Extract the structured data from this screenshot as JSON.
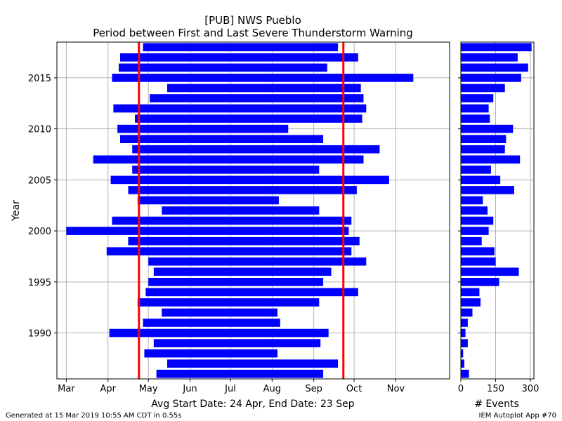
{
  "title_line1": "[PUB] NWS Pueblo",
  "title_line2": "Period between First and Last Severe Thunderstorm Warning",
  "footer_left": "Generated at 15 Mar 2019 10:55 AM CDT in 0.55s",
  "footer_right": "IEM Autoplot App #70",
  "avg_label": "Avg Start Date: 24 Apr, End Date: 23 Sep",
  "colors": {
    "bar": "#0000ff",
    "avg_line": "#ff0000",
    "grid": "#b0b0b0",
    "avg_text": "#ff0000"
  },
  "chart_data": [
    {
      "type": "bar",
      "orientation": "horizontal-range",
      "ylabel": "Year",
      "xlabel": "",
      "x_units": "day of year",
      "xlim": [
        53,
        345
      ],
      "ylim": [
        1985.5,
        2018.5
      ],
      "month_ticks": [
        {
          "label": "Mar",
          "doy": 60
        },
        {
          "label": "Apr",
          "doy": 91
        },
        {
          "label": "May",
          "doy": 121
        },
        {
          "label": "Jun",
          "doy": 152
        },
        {
          "label": "Jul",
          "doy": 182
        },
        {
          "label": "Aug",
          "doy": 213
        },
        {
          "label": "Sep",
          "doy": 244
        },
        {
          "label": "Oct",
          "doy": 274
        },
        {
          "label": "Nov",
          "doy": 305
        }
      ],
      "year_ticks": [
        1990,
        1995,
        2000,
        2005,
        2010,
        2015
      ],
      "avg_start_doy": 114,
      "avg_end_doy": 266,
      "grid": true,
      "periods": [
        {
          "year": 1986,
          "start": 127,
          "end": 251
        },
        {
          "year": 1987,
          "start": 135,
          "end": 262
        },
        {
          "year": 1988,
          "start": 118,
          "end": 217
        },
        {
          "year": 1989,
          "start": 125,
          "end": 249
        },
        {
          "year": 1990,
          "start": 92,
          "end": 255
        },
        {
          "year": 1991,
          "start": 117,
          "end": 219
        },
        {
          "year": 1992,
          "start": 131,
          "end": 217
        },
        {
          "year": 1993,
          "start": 113,
          "end": 248
        },
        {
          "year": 1994,
          "start": 119,
          "end": 277
        },
        {
          "year": 1995,
          "start": 121,
          "end": 251
        },
        {
          "year": 1996,
          "start": 125,
          "end": 257
        },
        {
          "year": 1997,
          "start": 121,
          "end": 283
        },
        {
          "year": 1998,
          "start": 90,
          "end": 272
        },
        {
          "year": 1999,
          "start": 106,
          "end": 278
        },
        {
          "year": 2000,
          "start": 60,
          "end": 270
        },
        {
          "year": 2001,
          "start": 94,
          "end": 272
        },
        {
          "year": 2002,
          "start": 131,
          "end": 248
        },
        {
          "year": 2003,
          "start": 113,
          "end": 218
        },
        {
          "year": 2004,
          "start": 106,
          "end": 276
        },
        {
          "year": 2005,
          "start": 93,
          "end": 300
        },
        {
          "year": 2006,
          "start": 109,
          "end": 248
        },
        {
          "year": 2007,
          "start": 80,
          "end": 281
        },
        {
          "year": 2008,
          "start": 109,
          "end": 293
        },
        {
          "year": 2009,
          "start": 100,
          "end": 251
        },
        {
          "year": 2010,
          "start": 98,
          "end": 225
        },
        {
          "year": 2011,
          "start": 111,
          "end": 280
        },
        {
          "year": 2012,
          "start": 95,
          "end": 283
        },
        {
          "year": 2013,
          "start": 122,
          "end": 281
        },
        {
          "year": 2014,
          "start": 135,
          "end": 279
        },
        {
          "year": 2015,
          "start": 94,
          "end": 318
        },
        {
          "year": 2016,
          "start": 99,
          "end": 254
        },
        {
          "year": 2017,
          "start": 100,
          "end": 277
        },
        {
          "year": 2018,
          "start": 117,
          "end": 262
        }
      ]
    },
    {
      "type": "bar",
      "orientation": "horizontal",
      "xlabel": "# Events",
      "xlim": [
        0,
        315
      ],
      "x_ticks": [
        0,
        150,
        300
      ],
      "grid": true,
      "counts": [
        {
          "year": 1986,
          "value": 35
        },
        {
          "year": 1987,
          "value": 15
        },
        {
          "year": 1988,
          "value": 10
        },
        {
          "year": 1989,
          "value": 30
        },
        {
          "year": 1990,
          "value": 20
        },
        {
          "year": 1991,
          "value": 30
        },
        {
          "year": 1992,
          "value": 50
        },
        {
          "year": 1993,
          "value": 85
        },
        {
          "year": 1994,
          "value": 80
        },
        {
          "year": 1995,
          "value": 165
        },
        {
          "year": 1996,
          "value": 250
        },
        {
          "year": 1997,
          "value": 150
        },
        {
          "year": 1998,
          "value": 145
        },
        {
          "year": 1999,
          "value": 90
        },
        {
          "year": 2000,
          "value": 120
        },
        {
          "year": 2001,
          "value": 140
        },
        {
          "year": 2002,
          "value": 115
        },
        {
          "year": 2003,
          "value": 95
        },
        {
          "year": 2004,
          "value": 230
        },
        {
          "year": 2005,
          "value": 170
        },
        {
          "year": 2006,
          "value": 130
        },
        {
          "year": 2007,
          "value": 255
        },
        {
          "year": 2008,
          "value": 190
        },
        {
          "year": 2009,
          "value": 195
        },
        {
          "year": 2010,
          "value": 225
        },
        {
          "year": 2011,
          "value": 125
        },
        {
          "year": 2012,
          "value": 120
        },
        {
          "year": 2013,
          "value": 140
        },
        {
          "year": 2014,
          "value": 190
        },
        {
          "year": 2015,
          "value": 260
        },
        {
          "year": 2016,
          "value": 290
        },
        {
          "year": 2017,
          "value": 245
        },
        {
          "year": 2018,
          "value": 305
        }
      ]
    }
  ]
}
